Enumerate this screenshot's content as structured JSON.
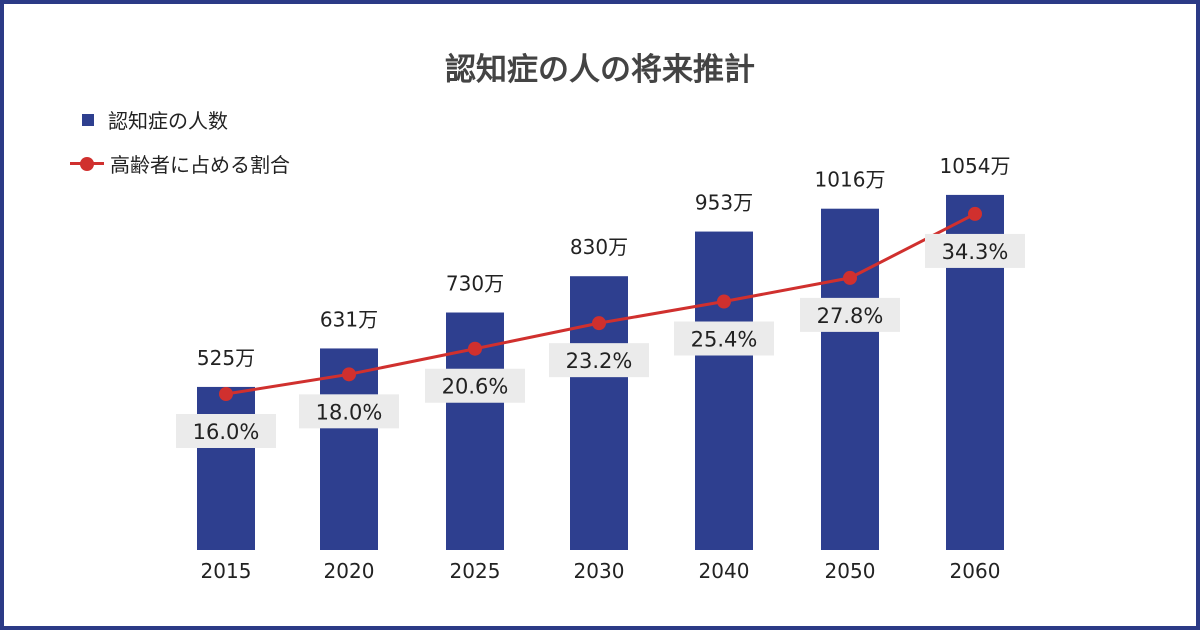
{
  "chart_data": {
    "type": "bar+line",
    "title": "認知症の人の将来推計",
    "categories": [
      "2015",
      "2020",
      "2025",
      "2030",
      "2040",
      "2050",
      "2060"
    ],
    "series": [
      {
        "name": "認知症の人数",
        "type": "bar",
        "values": [
          525,
          631,
          730,
          830,
          953,
          1016,
          1054
        ],
        "labels": [
          "525万",
          "631万",
          "730万",
          "830万",
          "953万",
          "1016万",
          "1054万"
        ],
        "color": "#2e3f8f"
      },
      {
        "name": "高齢者に占める割合",
        "type": "line",
        "values": [
          16.0,
          18.0,
          20.6,
          23.2,
          25.4,
          27.8,
          34.3
        ],
        "labels": [
          "16.0%",
          "18.0%",
          "20.6%",
          "23.2%",
          "25.4%",
          "27.8%",
          "34.3%"
        ],
        "color": "#d0302e"
      }
    ],
    "legend": "top-left",
    "grid": false
  }
}
